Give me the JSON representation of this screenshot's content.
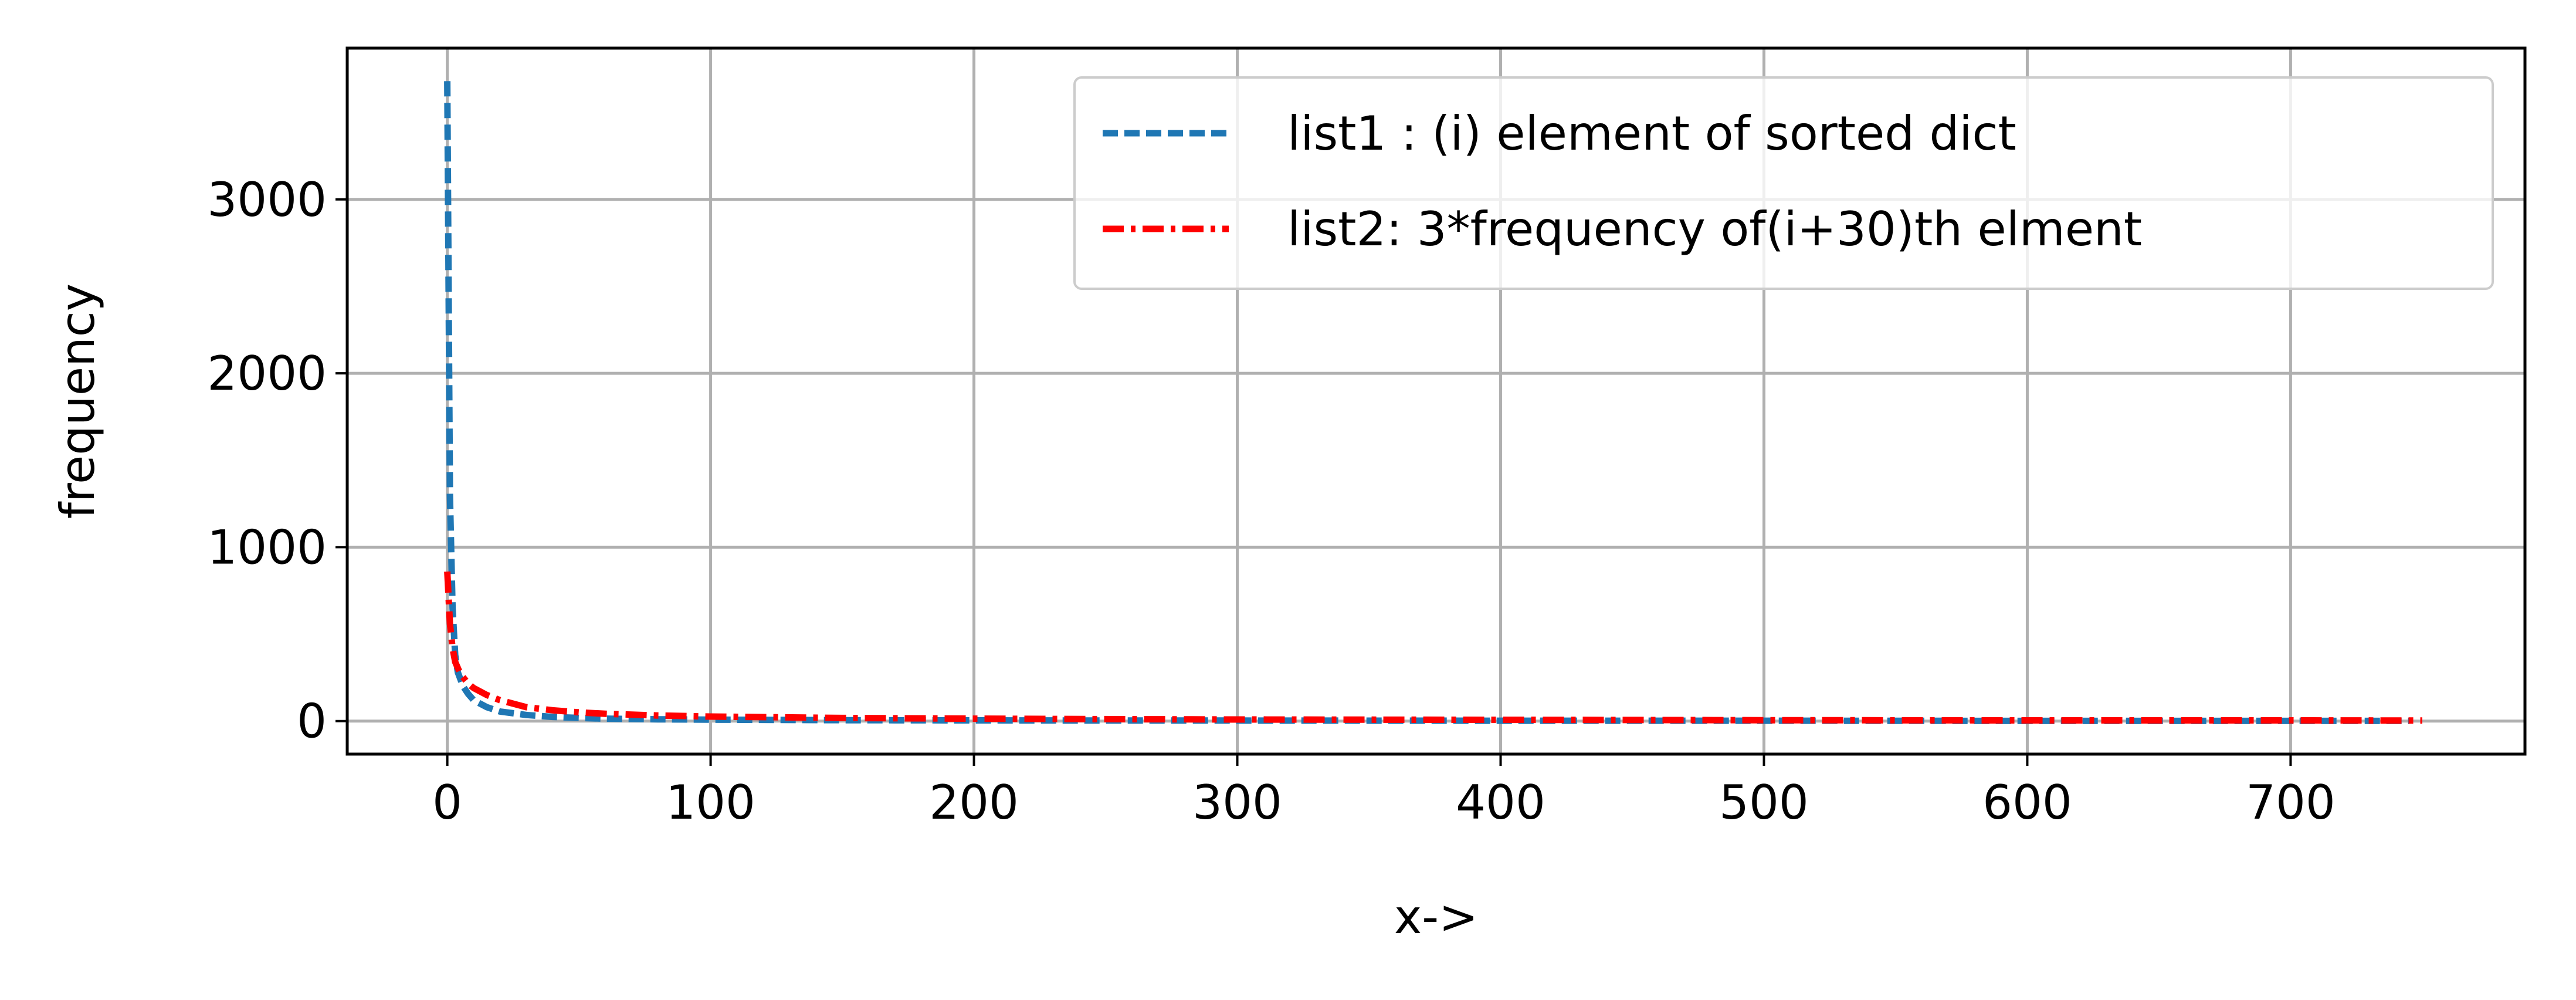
{
  "chart_data": {
    "type": "line",
    "title": "",
    "xlabel": "x->",
    "ylabel": "frequency",
    "xlim": [
      -38,
      789
    ],
    "ylim": [
      -190,
      3870
    ],
    "grid": true,
    "legend_position": "top-right",
    "x_ticks": [
      0,
      100,
      200,
      300,
      400,
      500,
      600,
      700
    ],
    "x_tick_labels": [
      "0",
      "100",
      "200",
      "300",
      "400",
      "500",
      "600",
      "700"
    ],
    "y_ticks": [
      0,
      1000,
      2000,
      3000
    ],
    "y_tick_labels": [
      "0",
      "1000",
      "2000",
      "3000"
    ],
    "series": [
      {
        "name": "list1 : (i) element of sorted dict",
        "color": "#1f77b4",
        "linestyle": "dashed",
        "x": [
          0,
          1,
          2,
          3,
          4,
          6,
          8,
          10,
          15,
          20,
          30,
          40,
          50,
          60,
          80,
          100,
          150,
          200,
          250,
          300,
          400,
          500,
          600,
          700,
          745
        ],
        "y": [
          3680,
          1300,
          650,
          380,
          280,
          200,
          155,
          120,
          80,
          55,
          35,
          24,
          18,
          14,
          10,
          8,
          5,
          4,
          3,
          3,
          2,
          2,
          1,
          1,
          1
        ]
      },
      {
        "name": "list2: 3*frequency of(i+30)th elment",
        "color": "#ff0000",
        "linestyle": "dashdot",
        "x": [
          0,
          1,
          2,
          3,
          5,
          8,
          10,
          15,
          20,
          30,
          40,
          50,
          60,
          80,
          100,
          150,
          200,
          250,
          300,
          400,
          500,
          600,
          700,
          750
        ],
        "y": [
          860,
          560,
          420,
          340,
          270,
          215,
          190,
          150,
          120,
          80,
          62,
          50,
          42,
          32,
          26,
          18,
          14,
          11,
          9,
          7,
          5,
          4,
          4,
          3
        ]
      }
    ]
  }
}
